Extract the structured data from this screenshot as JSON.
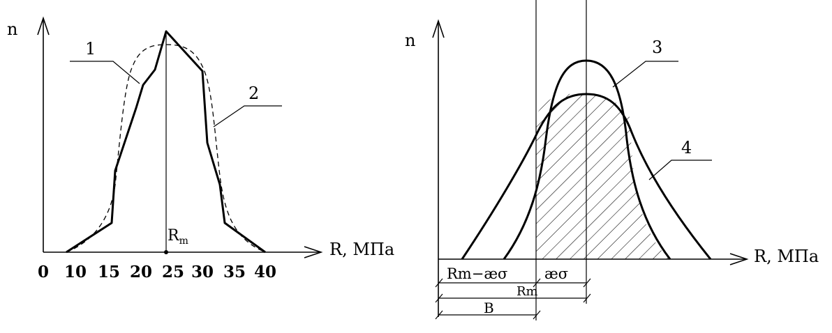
{
  "left_panel": {
    "y_axis_label": "n",
    "x_axis_label": "R,  МПа",
    "x_ticks": [
      "0",
      "10",
      "15",
      "20",
      "25",
      "30",
      "35",
      "40"
    ],
    "mean_label_main": "R",
    "mean_label_sub": "m",
    "curve_labels": [
      "1",
      "2"
    ]
  },
  "right_panel": {
    "y_axis_label": "n",
    "x_axis_label": "R,  МПа",
    "curve_labels": [
      "3",
      "4"
    ],
    "dim_rm_minus": "Rm−æσ",
    "dim_ae_sigma": "æσ",
    "dim_rm": "Rm",
    "dim_b": "B"
  }
}
